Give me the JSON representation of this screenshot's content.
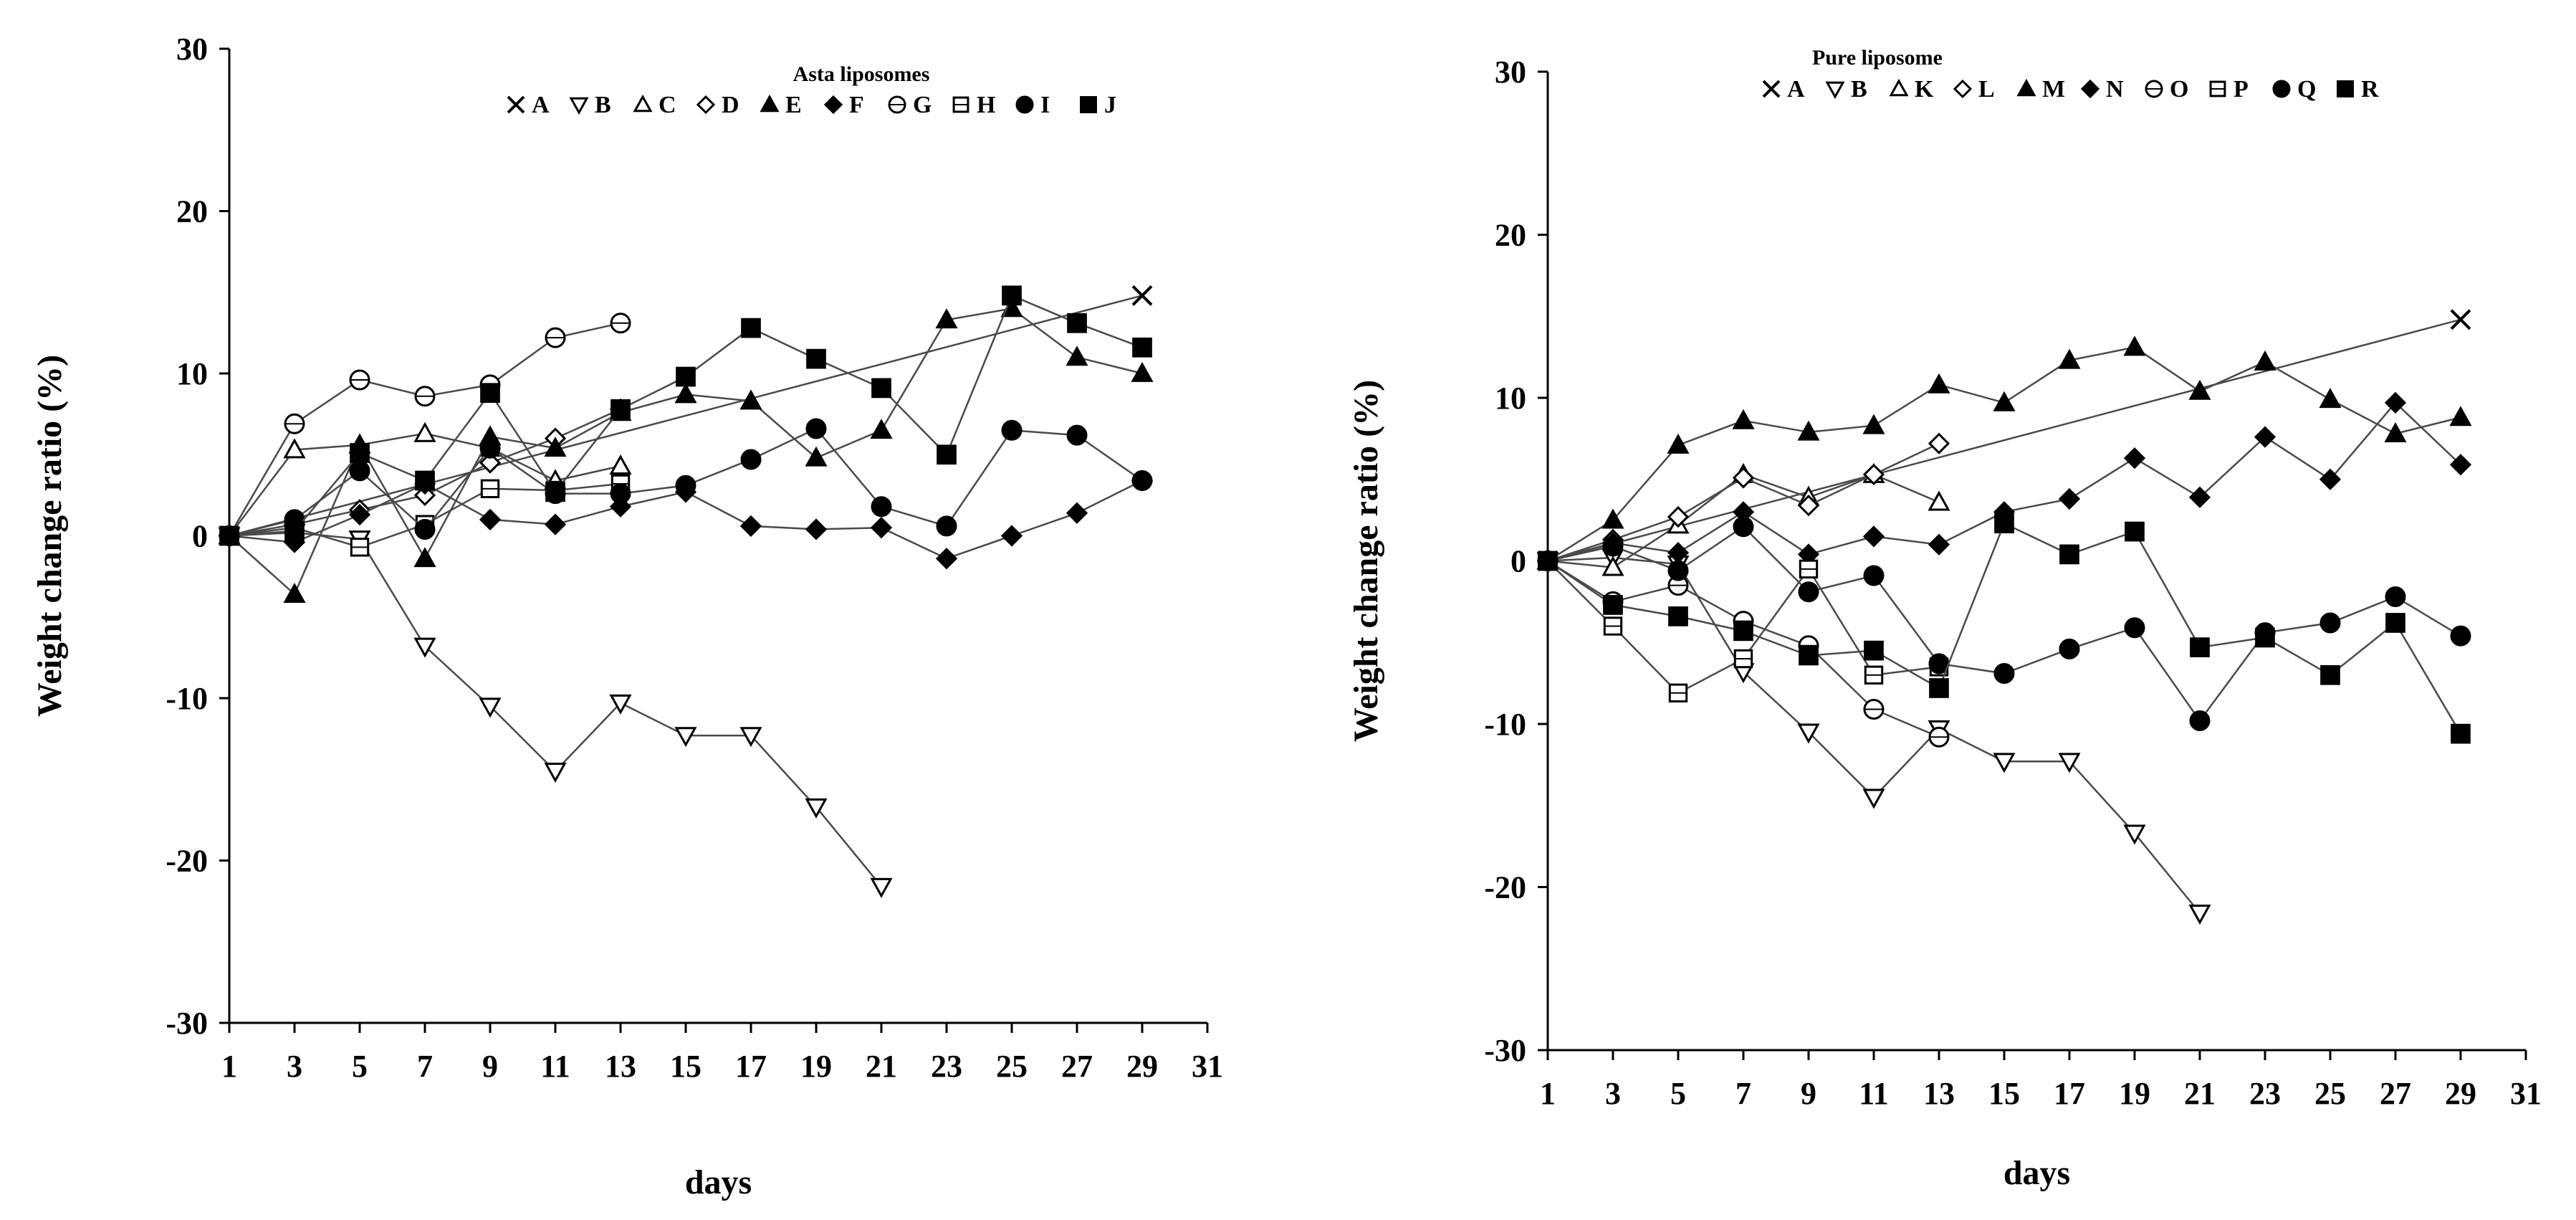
{
  "chart_data": [
    {
      "type": "line",
      "title": "Asta liposomes",
      "xlabel": "days",
      "ylabel": "Weight change ratio (%)",
      "xlim": [
        1,
        31
      ],
      "ylim": [
        -30,
        30
      ],
      "xticks": [
        1,
        3,
        5,
        7,
        9,
        11,
        13,
        15,
        17,
        19,
        21,
        23,
        25,
        27,
        29,
        31
      ],
      "yticks": [
        -30,
        -20,
        -10,
        0,
        10,
        20,
        30
      ],
      "grid": false,
      "legend_position": "top-right",
      "series": [
        {
          "name": "A",
          "marker": "x",
          "x": [
            1,
            29
          ],
          "y": [
            0,
            14.8
          ]
        },
        {
          "name": "B",
          "marker": "triangle-down-open",
          "x": [
            1,
            3,
            5,
            7,
            9,
            11,
            13,
            15,
            17,
            19,
            21
          ],
          "y": [
            0,
            0.2,
            -0.2,
            -6.8,
            -10.5,
            -14.5,
            -10.3,
            -12.3,
            -12.3,
            -16.7,
            -21.6
          ]
        },
        {
          "name": "C",
          "marker": "triangle-up-open",
          "x": [
            1,
            3,
            5,
            7,
            9,
            11,
            13
          ],
          "y": [
            0,
            5.3,
            5.6,
            6.3,
            5.4,
            3.4,
            4.3
          ]
        },
        {
          "name": "D",
          "marker": "diamond-open",
          "x": [
            1,
            3,
            5,
            7,
            9,
            11,
            13
          ],
          "y": [
            0,
            0.7,
            1.6,
            2.5,
            4.5,
            6.0,
            7.8
          ]
        },
        {
          "name": "E",
          "marker": "triangle-up-filled",
          "x": [
            1,
            3,
            5,
            7,
            9,
            11,
            13,
            15,
            17,
            19,
            21,
            23,
            25,
            27,
            29
          ],
          "y": [
            0,
            -3.6,
            5.6,
            -1.4,
            6.1,
            5.4,
            7.6,
            8.7,
            8.3,
            4.8,
            6.5,
            13.3,
            14.0,
            11.0,
            10.0
          ]
        },
        {
          "name": "F",
          "marker": "diamond-filled",
          "x": [
            1,
            3,
            5,
            7,
            9,
            11,
            13,
            15,
            17,
            19,
            21,
            23,
            25,
            27,
            29
          ],
          "y": [
            0,
            -0.4,
            1.3,
            3.2,
            1.0,
            0.7,
            1.8,
            2.7,
            0.6,
            0.4,
            0.5,
            -1.4,
            0.0,
            1.4,
            3.4
          ]
        },
        {
          "name": "G",
          "marker": "circle-line-open",
          "x": [
            1,
            3,
            5,
            7,
            9,
            11,
            13
          ],
          "y": [
            0,
            6.9,
            9.6,
            8.6,
            9.3,
            12.2,
            13.1
          ]
        },
        {
          "name": "H",
          "marker": "square-line-open",
          "x": [
            1,
            3,
            5,
            7,
            9,
            11,
            13
          ],
          "y": [
            0,
            0.5,
            -0.7,
            0.7,
            2.9,
            2.8,
            3.2
          ]
        },
        {
          "name": "I",
          "marker": "circle-filled",
          "x": [
            1,
            3,
            5,
            7,
            9,
            11,
            13,
            15,
            17,
            19,
            21,
            23,
            25,
            27,
            29
          ],
          "y": [
            0,
            1.0,
            4.0,
            0.4,
            5.4,
            2.6,
            2.6,
            3.1,
            4.7,
            6.6,
            1.8,
            0.6,
            6.5,
            6.2,
            3.4
          ]
        },
        {
          "name": "J",
          "marker": "square-filled",
          "x": [
            1,
            3,
            5,
            7,
            9,
            11,
            13,
            15,
            17,
            19,
            21,
            23,
            25,
            27,
            29
          ],
          "y": [
            0,
            0.3,
            5.1,
            3.4,
            8.8,
            2.7,
            7.8,
            9.8,
            12.8,
            10.9,
            9.1,
            5.0,
            14.8,
            13.1,
            11.6
          ]
        }
      ]
    },
    {
      "type": "line",
      "title": "Pure liposome",
      "xlabel": "days",
      "ylabel": "Weight change ratio (%)",
      "xlim": [
        1,
        31
      ],
      "ylim": [
        -30,
        30
      ],
      "xticks": [
        1,
        3,
        5,
        7,
        9,
        11,
        13,
        15,
        17,
        19,
        21,
        23,
        25,
        27,
        29,
        31
      ],
      "yticks": [
        -30,
        -20,
        -10,
        0,
        10,
        20,
        30
      ],
      "grid": false,
      "legend_position": "top-right",
      "series": [
        {
          "name": "A",
          "marker": "x",
          "x": [
            1,
            29
          ],
          "y": [
            0,
            14.8
          ]
        },
        {
          "name": "B",
          "marker": "triangle-down-open",
          "x": [
            1,
            3,
            5,
            7,
            9,
            11,
            13,
            15,
            17,
            19,
            21
          ],
          "y": [
            0,
            0.2,
            -0.2,
            -6.8,
            -10.5,
            -14.5,
            -10.3,
            -12.3,
            -12.3,
            -16.7,
            -21.6
          ]
        },
        {
          "name": "K",
          "marker": "triangle-up-open",
          "x": [
            1,
            3,
            5,
            7,
            9,
            11,
            13
          ],
          "y": [
            0,
            -0.4,
            2.2,
            5.3,
            3.9,
            5.3,
            3.6
          ]
        },
        {
          "name": "L",
          "marker": "diamond-open",
          "x": [
            1,
            3,
            5,
            7,
            9,
            11,
            13
          ],
          "y": [
            0,
            1.3,
            2.7,
            5.1,
            3.4,
            5.3,
            7.2
          ]
        },
        {
          "name": "M",
          "marker": "triangle-up-filled",
          "x": [
            1,
            3,
            5,
            7,
            9,
            11,
            13,
            15,
            17,
            19,
            21,
            23,
            25,
            27,
            29
          ],
          "y": [
            0,
            2.5,
            7.1,
            8.6,
            7.9,
            8.3,
            10.8,
            9.7,
            12.3,
            13.1,
            10.4,
            12.2,
            9.9,
            7.8,
            8.8
          ]
        },
        {
          "name": "N",
          "marker": "diamond-filled",
          "x": [
            1,
            3,
            5,
            7,
            9,
            11,
            13,
            15,
            17,
            19,
            21,
            23,
            25,
            27,
            29
          ],
          "y": [
            0,
            1.1,
            0.5,
            3.0,
            0.4,
            1.5,
            1.0,
            3.0,
            3.8,
            6.3,
            3.9,
            7.6,
            5.0,
            9.7,
            5.9
          ]
        },
        {
          "name": "O",
          "marker": "circle-line-open",
          "x": [
            1,
            3,
            5,
            7,
            9,
            11,
            13
          ],
          "y": [
            0,
            -2.5,
            -1.5,
            -3.7,
            -5.2,
            -9.1,
            -10.8
          ]
        },
        {
          "name": "P",
          "marker": "square-line-open",
          "x": [
            1,
            3,
            5,
            7,
            9,
            11,
            13
          ],
          "y": [
            0,
            -4.0,
            -8.1,
            -6.0,
            -0.5,
            -7.0,
            -6.5
          ]
        },
        {
          "name": "Q",
          "marker": "circle-filled",
          "x": [
            1,
            3,
            5,
            7,
            9,
            11,
            13,
            15,
            17,
            19,
            21,
            23,
            25,
            27,
            29
          ],
          "y": [
            0,
            0.9,
            -0.6,
            2.1,
            -1.9,
            -0.9,
            -6.3,
            -6.9,
            -5.4,
            -4.1,
            -9.8,
            -4.4,
            -3.8,
            -2.2,
            -4.6
          ]
        },
        {
          "name": "R",
          "marker": "square-filled",
          "x": [
            1,
            3,
            5,
            7,
            9,
            11,
            13,
            15,
            17,
            19,
            21,
            23,
            25,
            27,
            29
          ],
          "y": [
            0,
            -2.7,
            -3.4,
            -4.3,
            -5.8,
            -5.5,
            -7.8,
            2.3,
            0.4,
            1.8,
            -5.3,
            -4.7,
            -7.0,
            -3.8,
            -10.6
          ]
        }
      ]
    }
  ]
}
